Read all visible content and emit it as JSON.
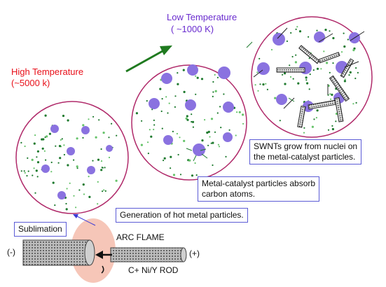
{
  "colors": {
    "high_temp": "#e8101a",
    "low_temp": "#6a2ccf",
    "arrow": "#1f7a1f",
    "circle_border": "#b02a6a",
    "particle": "#8a72e0",
    "dot": "#1e7a2e",
    "flame": "#f6c6b8",
    "box_border": "#5b5bd6"
  },
  "labels": {
    "high_temp_title": "High Temperature",
    "high_temp_value": "(~5000 k)",
    "low_temp_title": "Low Temperature",
    "low_temp_value": "( ~1000 K)",
    "sublimation": "Sublimation",
    "arc_flame": "ARC FLAME",
    "minus": "(-)",
    "plus": "(+)",
    "rod": "C+ Ni/Y ROD"
  },
  "boxes": {
    "generation": "Generation of hot metal particles.",
    "absorb_line1": "Metal-catalyst particles absorb",
    "absorb_line2": "carbon atoms.",
    "swnt_line1": "SWNTs grow from nuclei on",
    "swnt_line2": "the metal-catalyst particles."
  },
  "icons": [
    "rod-cathode-icon",
    "rod-anode-icon",
    "arc-flame-icon",
    "arrow-icon"
  ]
}
